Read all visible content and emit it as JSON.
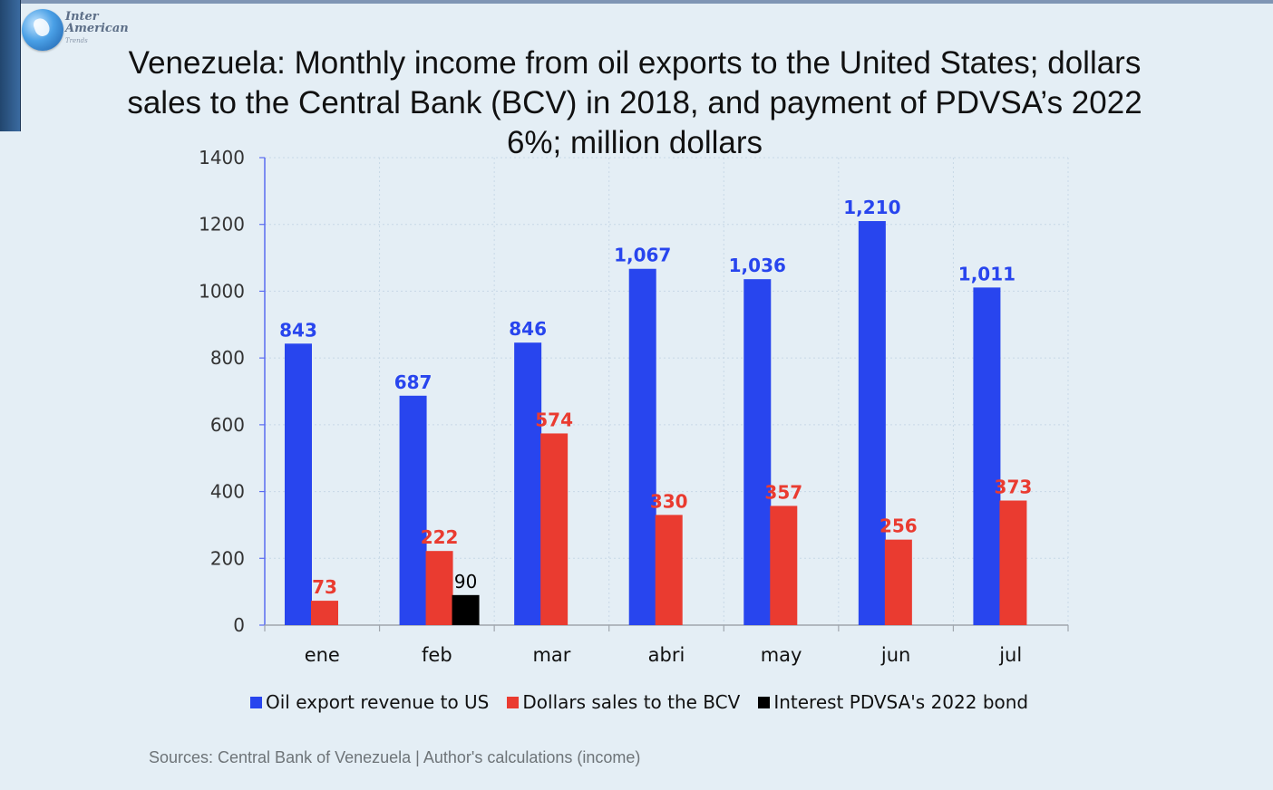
{
  "logo": {
    "line1": "Inter",
    "line2": "American",
    "line3": "Trends"
  },
  "chart_data": {
    "type": "bar",
    "title": "Venezuela: Monthly income from oil exports to the United States; dollars sales to the Central Bank (BCV) in 2018, and payment of PDVSA’s 2022 6%; million dollars",
    "categories": [
      "ene",
      "feb",
      "mar",
      "abri",
      "may",
      "jun",
      "jul"
    ],
    "series": [
      {
        "name": "Oil export revenue to US",
        "color": "#2845ee",
        "label_color": "#2845ee",
        "values": [
          843,
          687,
          846,
          1067,
          1036,
          1210,
          1011
        ],
        "labels": [
          "843",
          "687",
          "846",
          "1,067",
          "1,036",
          "1,210",
          "1,011"
        ]
      },
      {
        "name": "Dollars sales to the BCV",
        "color": "#ea3b30",
        "label_color": "#ea3b30",
        "values": [
          73,
          222,
          574,
          330,
          357,
          256,
          373
        ],
        "labels": [
          "73",
          "222",
          "574",
          "330",
          "357",
          "256",
          "373"
        ]
      },
      {
        "name": "Interest PDVSA's 2022 bond",
        "color": "#000000",
        "label_color": "#000000",
        "values": [
          null,
          90,
          null,
          null,
          null,
          null,
          null
        ],
        "labels": [
          null,
          "90",
          null,
          null,
          null,
          null,
          null
        ]
      }
    ],
    "ylim": [
      0,
      1400
    ],
    "yticks": [
      0,
      200,
      400,
      600,
      800,
      1000,
      1200,
      1400
    ],
    "xlabel": "",
    "ylabel": "",
    "grid": true,
    "legend": "bottom"
  },
  "source": "Sources: Central Bank of Venezuela | Author's calculations (income)"
}
